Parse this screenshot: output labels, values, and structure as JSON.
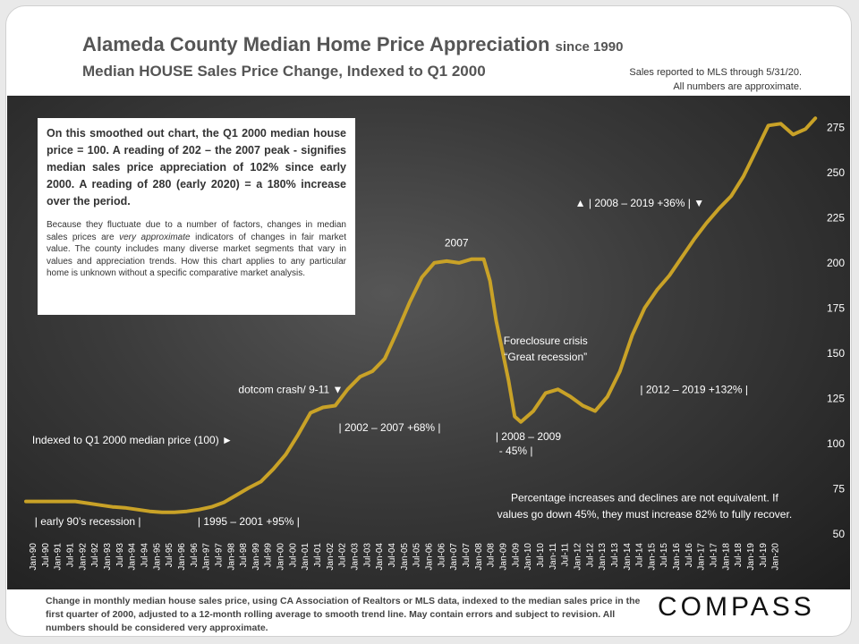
{
  "header": {
    "title": "Alameda County Median Home Price Appreciation",
    "title_suffix": "since 1990",
    "subtitle": "Median HOUSE Sales Price Change, Indexed to Q1 2000",
    "note_line1": "Sales reported to MLS through 5/31/20.",
    "note_line2": "All numbers are approximate."
  },
  "infobox": {
    "p1": "On this smoothed out chart, the Q1 2000 median house price = 100. A reading of 202 – the 2007 peak - signifies median sales price appreciation of 102% since early 2000.  A reading of 280 (early 2020) = a 180% increase over the period.",
    "p2_a": "Because they fluctuate due to a number of factors, changes in median sales prices are ",
    "p2_em": "very approximate",
    "p2_b": " indicators of changes in fair market value. The county includes many diverse market segments that vary in values and appreciation trends. How this chart applies to any particular home is unknown without a specific comparative market analysis."
  },
  "footer": {
    "text": "Change in monthly median house sales price, using CA Association of Realtors or MLS data, indexed to the median sales price in the first quarter of 2000, adjusted to a 12-month rolling average to smooth trend line.  May contain errors and subject to revision. All numbers should be considered very approximate.",
    "brand": "COMPASS"
  },
  "colors": {
    "line": "#c9a227",
    "text": "#ffffff",
    "axis_text": "#ffffff"
  },
  "chart_data": {
    "type": "line",
    "title": "Alameda County Median Home Price Appreciation since 1990",
    "subtitle": "Median HOUSE Sales Price Change, Indexed to Q1 2000",
    "ylim": [
      50,
      290
    ],
    "yticks": [
      50,
      75,
      100,
      125,
      150,
      175,
      200,
      225,
      250,
      275
    ],
    "xticks": [
      "Jan-90",
      "Jul-90",
      "Jan-91",
      "Jul-91",
      "Jan-92",
      "Jul-92",
      "Jan-93",
      "Jul-93",
      "Jan-94",
      "Jul-94",
      "Jan-95",
      "Jul-95",
      "Jan-96",
      "Jul-96",
      "Jan-97",
      "Jul-97",
      "Jan-98",
      "Jul-98",
      "Jan-99",
      "Jul-99",
      "Jan-00",
      "Jul-00",
      "Jan-01",
      "Jul-01",
      "Jan-02",
      "Jul-02",
      "Jan-03",
      "Jul-03",
      "Jan-04",
      "Jul-04",
      "Jan-05",
      "Jul-05",
      "Jan-06",
      "Jul-06",
      "Jan-07",
      "Jul-07",
      "Jan-08",
      "Jul-08",
      "Jan-09",
      "Jul-09",
      "Jan-10",
      "Jul-10",
      "Jan-11",
      "Jul-11",
      "Jan-12",
      "Jul-12",
      "Jan-13",
      "Jul-13",
      "Jan-14",
      "Jul-14",
      "Jan-15",
      "Jul-15",
      "Jan-16",
      "Jul-16",
      "Jan-17",
      "Jul-17",
      "Jan-18",
      "Jul-18",
      "Jan-19",
      "Jul-19",
      "Jan-20"
    ],
    "grid": false,
    "series": [
      {
        "values": [
          [
            1990.0,
            68
          ],
          [
            1990.5,
            68
          ],
          [
            1991.0,
            68
          ],
          [
            1991.5,
            68
          ],
          [
            1992.0,
            68
          ],
          [
            1992.5,
            67
          ],
          [
            1993.0,
            66
          ],
          [
            1993.5,
            65
          ],
          [
            1994.0,
            64.5
          ],
          [
            1994.5,
            63.5
          ],
          [
            1995.0,
            62.5
          ],
          [
            1995.5,
            62
          ],
          [
            1996.0,
            62
          ],
          [
            1996.5,
            62.5
          ],
          [
            1997.0,
            63.5
          ],
          [
            1997.5,
            65
          ],
          [
            1998.0,
            67.5
          ],
          [
            1998.5,
            71.5
          ],
          [
            1999.0,
            75.5
          ],
          [
            1999.5,
            79
          ],
          [
            2000.0,
            86
          ],
          [
            2000.5,
            94
          ],
          [
            2001.0,
            105
          ],
          [
            2001.5,
            117
          ],
          [
            2002.0,
            120
          ],
          [
            2002.5,
            121
          ],
          [
            2003.0,
            130
          ],
          [
            2003.5,
            137
          ],
          [
            2004.0,
            140
          ],
          [
            2004.5,
            147
          ],
          [
            2005.0,
            162
          ],
          [
            2005.5,
            178
          ],
          [
            2006.0,
            192
          ],
          [
            2006.5,
            200
          ],
          [
            2007.0,
            201
          ],
          [
            2007.5,
            200
          ],
          [
            2008.0,
            202
          ],
          [
            2008.5,
            202
          ],
          [
            2008.75,
            190
          ],
          [
            2009.0,
            168
          ],
          [
            2009.5,
            135
          ],
          [
            2009.75,
            115
          ],
          [
            2010.0,
            112
          ],
          [
            2010.5,
            118
          ],
          [
            2011.0,
            128
          ],
          [
            2011.5,
            130
          ],
          [
            2012.0,
            126
          ],
          [
            2012.5,
            121
          ],
          [
            2013.0,
            118
          ],
          [
            2013.5,
            126
          ],
          [
            2014.0,
            140
          ],
          [
            2014.5,
            160
          ],
          [
            2015.0,
            175
          ],
          [
            2015.5,
            185
          ],
          [
            2016.0,
            193
          ],
          [
            2016.5,
            203
          ],
          [
            2017.0,
            213
          ],
          [
            2017.5,
            222
          ],
          [
            2018.0,
            230
          ],
          [
            2018.5,
            237
          ],
          [
            2019.0,
            248
          ],
          [
            2019.5,
            262
          ],
          [
            2020.0,
            276
          ],
          [
            2020.5,
            277
          ],
          [
            2021.0,
            271
          ],
          [
            2021.5,
            274
          ],
          [
            2021.9,
            280
          ]
        ]
      }
    ],
    "annotations": [
      {
        "text": "2007",
        "x": 2007.4,
        "y": 209
      },
      {
        "text": "Foreclosure crisis",
        "x": 2011.0,
        "y": 155
      },
      {
        "text": "“Great recession”",
        "x": 2011.0,
        "y": 146
      },
      {
        "text": "dotcom crash/ 9-11  ▼",
        "x": 2000.7,
        "y": 128
      },
      {
        "text": "| 2002  – 2007 +68% |",
        "x": 2004.7,
        "y": 107
      },
      {
        "text": "| 2008  – 2009",
        "x": 2010.3,
        "y": 102
      },
      {
        "text": "- 45% |",
        "x": 2009.8,
        "y": 94
      },
      {
        "text": "Indexed to Q1 2000 median price (100)  ►",
        "x": 1994.3,
        "y": 100
      },
      {
        "text": "| early 90’s recession |",
        "x": 1992.5,
        "y": 55
      },
      {
        "text": "| 1995  – 2001  +95% |",
        "x": 1999.0,
        "y": 55
      },
      {
        "text": "| 2012  – 2019 +132% |",
        "x": 2017.0,
        "y": 128
      },
      {
        "text": "Percentage increases and declines are not equivalent. If",
        "x": 2015.0,
        "y": 68
      },
      {
        "text": "values go down 45%, they must increase 82% to fully recover.",
        "x": 2015.0,
        "y": 59
      },
      {
        "text": "▲  | 2008  – 2019 +36%  |  ▼",
        "x": 2014.8,
        "y": 231
      }
    ]
  }
}
